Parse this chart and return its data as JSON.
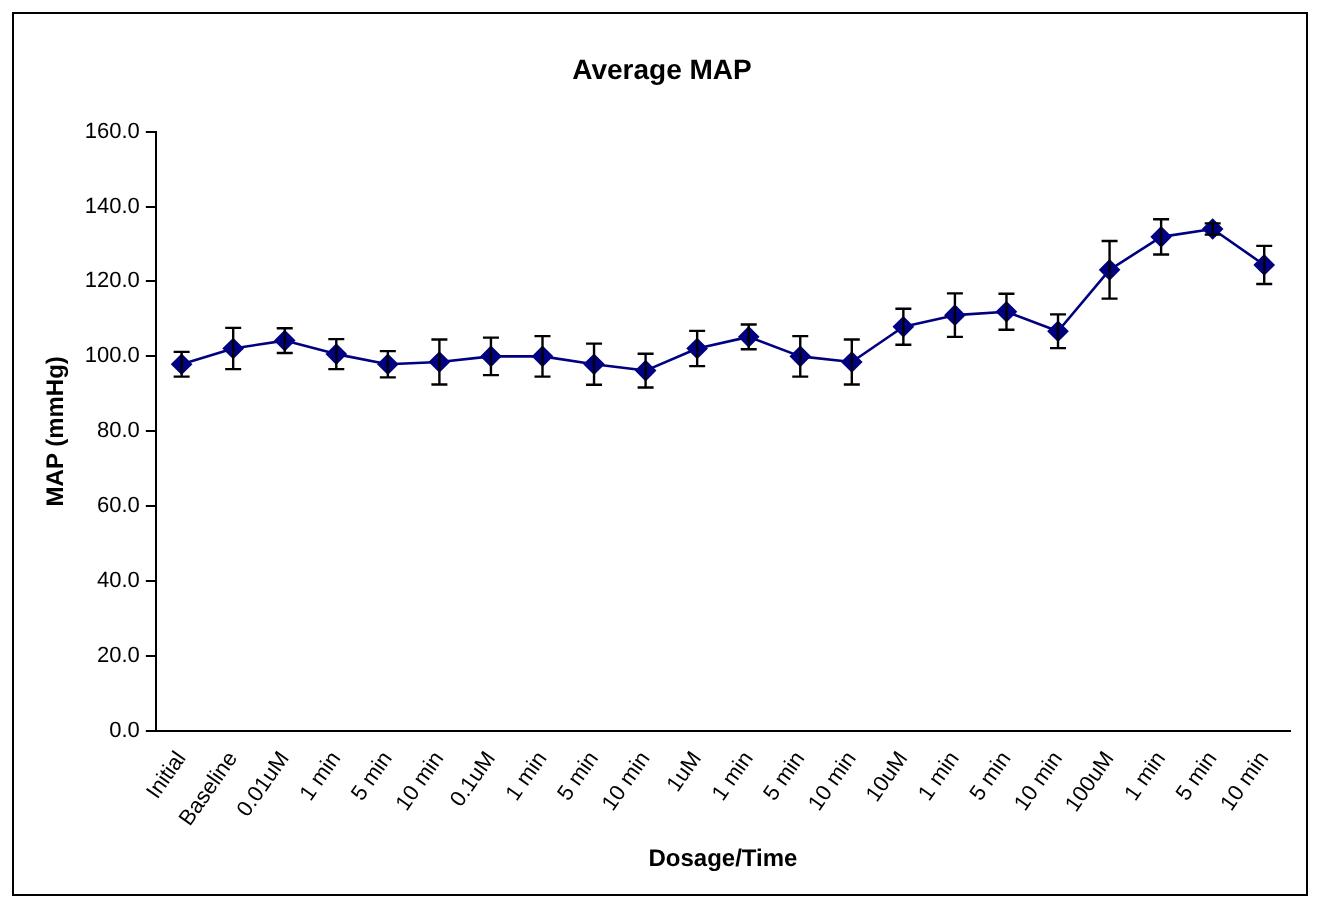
{
  "chart_data": {
    "type": "line",
    "title": "Average MAP",
    "xlabel": "Dosage/Time",
    "ylabel": "MAP (mmHg)",
    "categories": [
      "Initial",
      "Baseline",
      "0.01uM",
      "1 min",
      "5 min",
      "10 min",
      "0.1uM",
      "1 min",
      "5 min",
      "10 min",
      "1uM",
      "1 min",
      "5 min",
      "10 min",
      "10uM",
      "1 min",
      "5 min",
      "10 min",
      "100uM",
      "1 min",
      "5 min",
      "10 min"
    ],
    "series": [
      {
        "color": "#000080",
        "values": [
          97.9,
          102.1,
          104.2,
          100.6,
          97.9,
          98.5,
          100,
          100,
          97.9,
          96.2,
          102.1,
          105.2,
          100,
          98.5,
          107.9,
          111,
          111.9,
          106.7,
          123.1,
          131.9,
          134,
          124.4
        ],
        "errors": [
          3.3,
          5.5,
          3.3,
          4,
          3.5,
          6,
          5,
          5.4,
          5.5,
          4.5,
          4.7,
          3.3,
          5.4,
          6,
          4.8,
          5.8,
          4.8,
          4.5,
          7.7,
          4.7,
          1.5,
          5.1
        ]
      }
    ],
    "ylim": [
      0,
      160
    ],
    "yticks": [
      {
        "value": 0,
        "label": "0.0"
      },
      {
        "value": 20,
        "label": "20.0"
      },
      {
        "value": 40,
        "label": "40.0"
      },
      {
        "value": 60,
        "label": "60.0"
      },
      {
        "value": 80,
        "label": "80.0"
      },
      {
        "value": 100,
        "label": "100.0"
      },
      {
        "value": 120,
        "label": "120.0"
      },
      {
        "value": 140,
        "label": "140.0"
      },
      {
        "value": 160,
        "label": "160.0"
      }
    ],
    "grid": false,
    "legend": false,
    "marker": "diamond",
    "line_style": "solid"
  }
}
